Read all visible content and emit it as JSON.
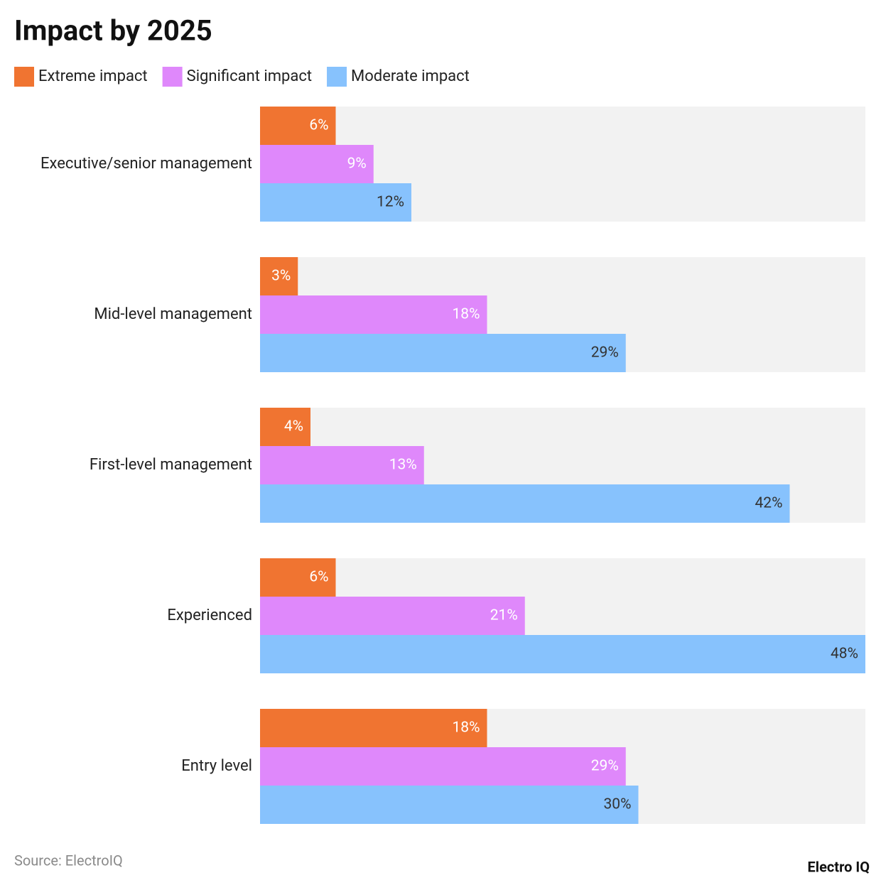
{
  "chart_data": {
    "type": "bar",
    "orientation": "horizontal",
    "title": "Impact by 2025",
    "categories": [
      "Executive/senior management",
      "Mid-level management",
      "First-level management",
      "Experienced",
      "Entry level"
    ],
    "series": [
      {
        "name": "Extreme impact",
        "color": "#f07431",
        "values": [
          6,
          3,
          4,
          6,
          18
        ],
        "value_labels": [
          "6%",
          "3%",
          "4%",
          "6%",
          "18%"
        ]
      },
      {
        "name": "Significant impact",
        "color": "#df88fb",
        "values": [
          9,
          18,
          13,
          21,
          29
        ],
        "value_labels": [
          "9%",
          "18%",
          "13%",
          "21%",
          "29%"
        ]
      },
      {
        "name": "Moderate impact",
        "color": "#87c2fd",
        "values": [
          12,
          29,
          42,
          48,
          30
        ],
        "value_labels": [
          "12%",
          "29%",
          "42%",
          "48%",
          "30%"
        ]
      }
    ],
    "xlim": [
      0,
      48
    ],
    "legend": "top-left",
    "source": "Source: ElectroIQ",
    "brand": "Electro IQ"
  }
}
